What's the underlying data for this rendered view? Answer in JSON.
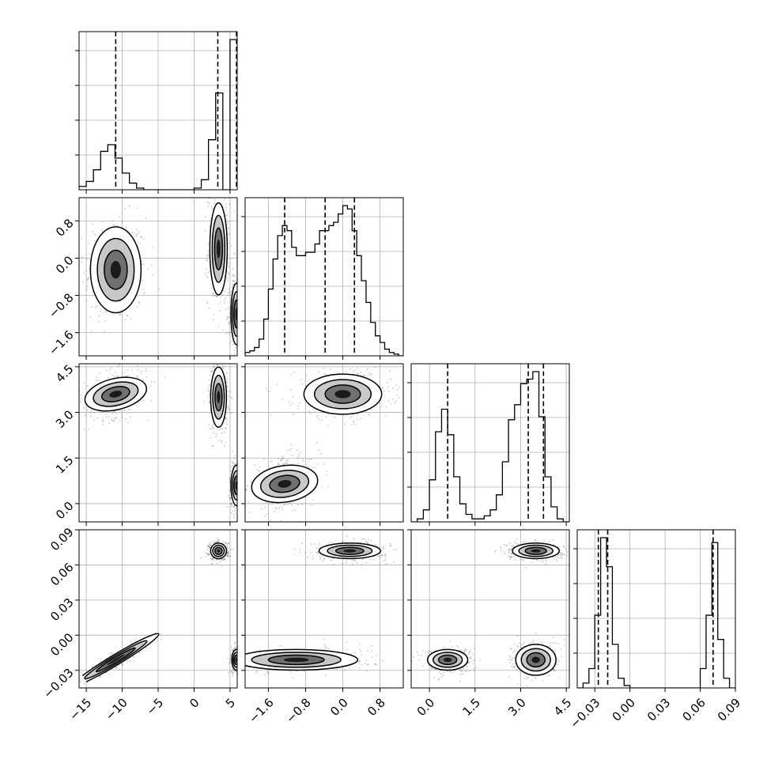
{
  "chart_data": {
    "type": "corner",
    "title": "",
    "n_params": 4,
    "grid": true,
    "params": [
      {
        "index": 0,
        "range": [
          -16,
          6
        ],
        "ticks": [
          -15,
          -10,
          -5,
          0,
          5
        ],
        "tick_labels": [
          "−15",
          "−10",
          "−5",
          "0",
          "5"
        ],
        "quantiles": [
          -10.9,
          3.3,
          5.9
        ],
        "hist_bins_left": [
          -16,
          -15,
          -14,
          -13,
          -12,
          -11,
          -10,
          -9,
          -8,
          -7,
          -6,
          -5,
          -4,
          -3,
          -2,
          -1,
          0,
          1,
          2,
          3,
          4,
          5
        ],
        "hist_counts": [
          0.02,
          0.05,
          0.12,
          0.23,
          0.27,
          0.19,
          0.1,
          0.04,
          0.01,
          0.0,
          0.0,
          0.0,
          0.0,
          0.0,
          0.0,
          0.0,
          0.01,
          0.06,
          0.3,
          0.58,
          0.0,
          0.9
        ]
      },
      {
        "index": 1,
        "range": [
          -2.1,
          1.3
        ],
        "ticks": [
          -1.6,
          -0.8,
          0.0,
          0.8
        ],
        "tick_labels": [
          "−1.6",
          "−0.8",
          "0.0",
          "0.8"
        ],
        "quantiles": [
          -1.25,
          -0.38,
          0.25
        ],
        "hist_bins_left": [
          -2.1,
          -2.0,
          -1.9,
          -1.8,
          -1.7,
          -1.6,
          -1.5,
          -1.4,
          -1.3,
          -1.2,
          -1.1,
          -1.0,
          -0.9,
          -0.8,
          -0.7,
          -0.6,
          -0.5,
          -0.4,
          -0.3,
          -0.2,
          -0.1,
          0.0,
          0.1,
          0.2,
          0.3,
          0.4,
          0.5,
          0.6,
          0.7,
          0.8,
          0.9,
          1.0,
          1.1,
          1.2
        ],
        "hist_counts": [
          0.02,
          0.03,
          0.05,
          0.1,
          0.22,
          0.4,
          0.58,
          0.72,
          0.78,
          0.75,
          0.65,
          0.6,
          0.6,
          0.62,
          0.62,
          0.67,
          0.75,
          0.75,
          0.78,
          0.8,
          0.85,
          0.9,
          0.88,
          0.75,
          0.6,
          0.45,
          0.32,
          0.2,
          0.12,
          0.08,
          0.04,
          0.02,
          0.01,
          0.0
        ]
      },
      {
        "index": 2,
        "range": [
          -0.6,
          4.6
        ],
        "ticks": [
          0.0,
          1.5,
          3.0,
          4.5
        ],
        "tick_labels": [
          "0.0",
          "1.5",
          "3.0",
          "4.5"
        ],
        "quantiles": [
          0.6,
          3.25,
          3.75
        ],
        "hist_bins_left": [
          -0.6,
          -0.4,
          -0.2,
          0.0,
          0.2,
          0.4,
          0.6,
          0.8,
          1.0,
          1.2,
          1.4,
          1.6,
          1.8,
          2.0,
          2.2,
          2.4,
          2.6,
          2.8,
          3.0,
          3.2,
          3.4,
          3.6,
          3.8,
          4.0,
          4.2,
          4.4
        ],
        "hist_counts": [
          0.0,
          0.02,
          0.08,
          0.28,
          0.6,
          0.75,
          0.58,
          0.3,
          0.12,
          0.05,
          0.02,
          0.02,
          0.04,
          0.08,
          0.18,
          0.4,
          0.68,
          0.78,
          0.92,
          0.95,
          1.0,
          0.7,
          0.3,
          0.1,
          0.02,
          0.0
        ],
        "hist_peak_note": "bimodal"
      },
      {
        "index": 3,
        "range": [
          -0.045,
          0.09
        ],
        "ticks": [
          -0.03,
          0.0,
          0.03,
          0.06,
          0.09
        ],
        "tick_labels": [
          "−0.03",
          "0.00",
          "0.03",
          "0.06",
          "0.09"
        ],
        "quantiles": [
          -0.027,
          -0.019,
          0.071
        ],
        "hist_bins_left": [
          -0.045,
          -0.04,
          -0.035,
          -0.03,
          -0.025,
          -0.02,
          -0.015,
          -0.01,
          -0.005,
          0.0,
          0.005,
          0.01,
          0.015,
          0.02,
          0.025,
          0.03,
          0.035,
          0.04,
          0.045,
          0.05,
          0.055,
          0.06,
          0.065,
          0.07,
          0.075,
          0.08,
          0.085
        ],
        "hist_counts": [
          0.0,
          0.02,
          0.08,
          0.3,
          0.62,
          0.5,
          0.18,
          0.04,
          0.01,
          0.0,
          0.0,
          0.0,
          0.0,
          0.0,
          0.0,
          0.0,
          0.0,
          0.0,
          0.0,
          0.0,
          0.0,
          0.08,
          0.3,
          0.6,
          0.2,
          0.04,
          0.0
        ]
      }
    ],
    "density_clusters": [
      {
        "i": 0,
        "j": 1,
        "cx": -10.9,
        "cy": -0.25,
        "sx": 1.6,
        "sy": 0.42,
        "rho": 0.0
      },
      {
        "i": 0,
        "j": 1,
        "cx": 3.4,
        "cy": 0.2,
        "sx": 0.55,
        "sy": 0.45,
        "rho": 0.0
      },
      {
        "i": 0,
        "j": 1,
        "cx": 5.9,
        "cy": -1.2,
        "sx": 0.35,
        "sy": 0.3,
        "rho": 0.0
      },
      {
        "i": 0,
        "j": 2,
        "cx": -10.9,
        "cy": 3.6,
        "sx": 1.6,
        "sy": 0.3,
        "rho": 0.3
      },
      {
        "i": 0,
        "j": 2,
        "cx": 3.4,
        "cy": 3.5,
        "sx": 0.5,
        "sy": 0.45,
        "rho": 0.0
      },
      {
        "i": 0,
        "j": 2,
        "cx": 5.9,
        "cy": 0.6,
        "sx": 0.35,
        "sy": 0.3,
        "rho": 0.0
      },
      {
        "i": 0,
        "j": 3,
        "cx": -10.9,
        "cy": -0.021,
        "sx": 1.8,
        "sy": 0.007,
        "rho": 0.95
      },
      {
        "i": 0,
        "j": 3,
        "cx": 3.4,
        "cy": 0.072,
        "sx": 0.5,
        "sy": 0.003,
        "rho": 0.0
      },
      {
        "i": 0,
        "j": 3,
        "cx": 5.9,
        "cy": -0.021,
        "sx": 0.3,
        "sy": 0.004,
        "rho": 0.0
      },
      {
        "i": 1,
        "j": 2,
        "cx": 0.0,
        "cy": 3.6,
        "sx": 0.38,
        "sy": 0.3,
        "rho": 0.0
      },
      {
        "i": 1,
        "j": 2,
        "cx": -1.25,
        "cy": 0.65,
        "sx": 0.28,
        "sy": 0.32,
        "rho": 0.2
      },
      {
        "i": 1,
        "j": 3,
        "cx": 0.15,
        "cy": 0.072,
        "sx": 0.3,
        "sy": 0.003,
        "rho": 0.0
      },
      {
        "i": 1,
        "j": 3,
        "cx": -1.0,
        "cy": -0.021,
        "sx": 0.6,
        "sy": 0.004,
        "rho": 0.0
      },
      {
        "i": 2,
        "j": 3,
        "cx": 3.5,
        "cy": 0.072,
        "sx": 0.35,
        "sy": 0.003,
        "rho": 0.0
      },
      {
        "i": 2,
        "j": 3,
        "cx": 0.6,
        "cy": -0.021,
        "sx": 0.3,
        "sy": 0.004,
        "rho": 0.0
      },
      {
        "i": 2,
        "j": 3,
        "cx": 3.5,
        "cy": -0.021,
        "sx": 0.3,
        "sy": 0.006,
        "rho": 0.0
      }
    ],
    "contour_levels": [
      1.0,
      1.6,
      2.2
    ]
  }
}
